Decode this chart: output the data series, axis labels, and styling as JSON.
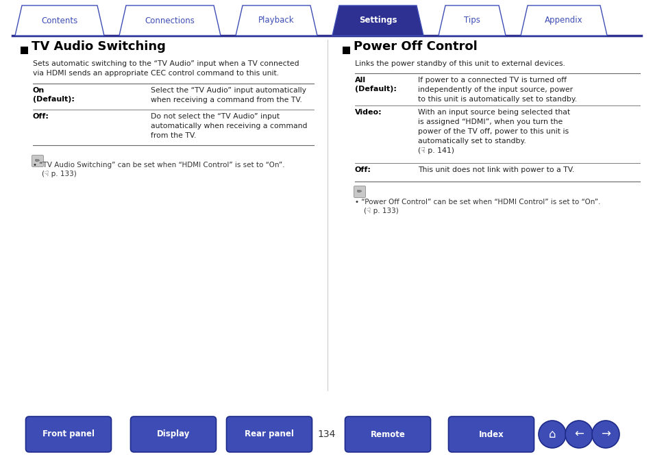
{
  "bg_color": "#ffffff",
  "tab_labels": [
    "Contents",
    "Connections",
    "Playback",
    "Settings",
    "Tips",
    "Appendix"
  ],
  "active_tab": 3,
  "tab_color_active": "#2e3192",
  "tab_color_inactive": "#ffffff",
  "tab_border_color": "#3d4db5",
  "tab_text_active": "#ffffff",
  "tab_text_inactive": "#3d4db5",
  "bottom_buttons": [
    "Front panel",
    "Display",
    "Rear panel",
    "Remote",
    "Index"
  ],
  "bottom_btn_color": "#3d4db5",
  "page_number": "134",
  "left_section_title": "TV Audio Switching",
  "left_desc": "Sets automatic switching to the “TV Audio” input when a TV connected\nvia HDMI sends an appropriate CEC control command to this unit.",
  "left_row1_key": "On\n(Default):",
  "left_row1_val": "Select the “TV Audio” input automatically\nwhen receiving a command from the TV.",
  "left_row2_key": "Off:",
  "left_row2_val": "Do not select the “TV Audio” input\nautomatically when receiving a command\nfrom the TV.",
  "left_note1": "• “TV Audio Switching” can be set when “HDMI Control” is set to “On”.",
  "left_note2": "    (☟ p. 133)",
  "right_section_title": "Power Off Control",
  "right_desc": "Links the power standby of this unit to external devices.",
  "right_row1_key": "All\n(Default):",
  "right_row1_val": "If power to a connected TV is turned off\nindependently of the input source, power\nto this unit is automatically set to standby.",
  "right_row2_key": "Video:",
  "right_row2_val": "With an input source being selected that\nis assigned “HDMI”, when you turn the\npower of the TV off, power to this unit is\nautomatically set to standby.\n(☟ p. 141)",
  "right_row3_key": "Off:",
  "right_row3_val": "This unit does not link with power to a TV.",
  "right_note1": "• “Power Off Control” can be set when “HDMI Control” is set to “On”.",
  "right_note2": "    (☟ p. 133)",
  "divider_color": "#2e3192",
  "line_color": "#666666"
}
